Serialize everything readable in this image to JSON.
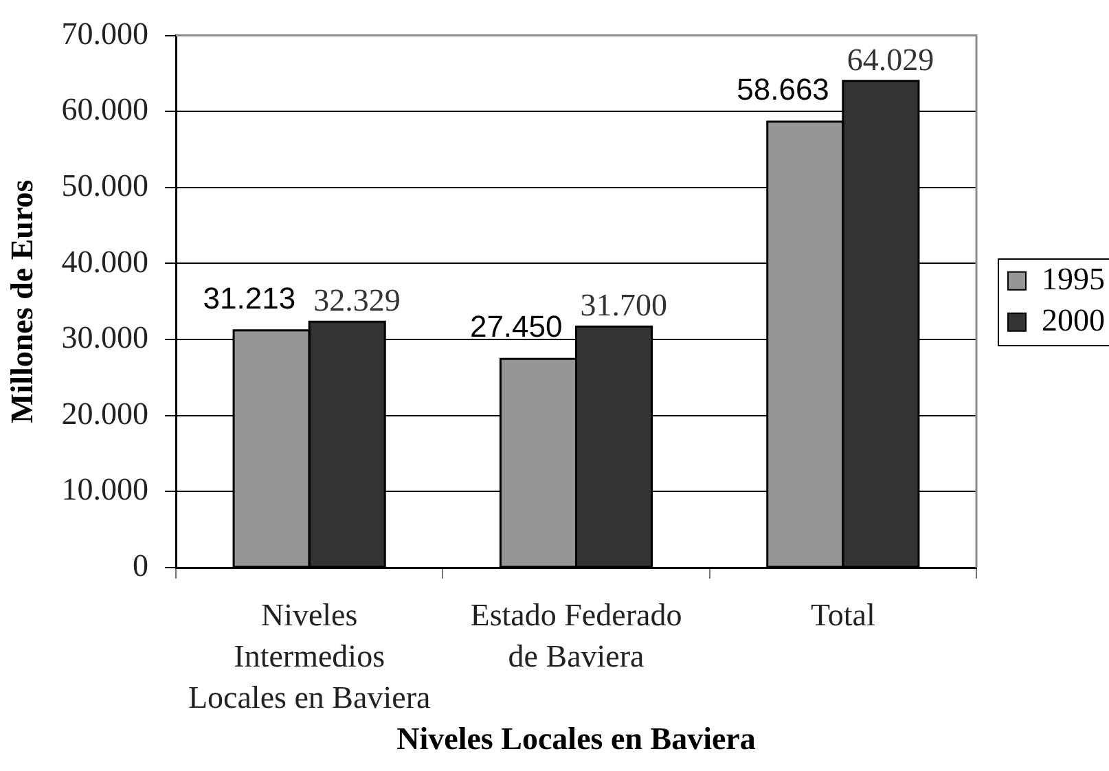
{
  "chart_data": {
    "type": "bar",
    "xlabel": "Niveles Locales en Baviera",
    "ylabel": "Millones de Euros",
    "categories": [
      "Niveles Intermedios Locales en Baviera",
      "Estado Federado de Baviera",
      "Total"
    ],
    "series": [
      {
        "name": "1995",
        "color": "#969696",
        "values": [
          31213,
          27450,
          58663
        ],
        "value_labels": [
          "31.213",
          "27.450",
          "58.663"
        ]
      },
      {
        "name": "2000",
        "color": "#333333",
        "values": [
          32329,
          31700,
          64029
        ],
        "value_labels": [
          "32.329",
          "31.700",
          "64.029"
        ]
      }
    ],
    "ylim": [
      0,
      70000
    ],
    "yticks": [
      0,
      {
        "value": 10000,
        "label": "10.000"
      },
      {
        "value": 20000,
        "label": "20.000"
      },
      {
        "value": 30000,
        "label": "30.000"
      },
      {
        "value": 40000,
        "label": "40.000"
      },
      {
        "value": 50000,
        "label": "50.000"
      },
      {
        "value": 60000,
        "label": "60.000"
      },
      {
        "value": 70000,
        "label": "70.000"
      }
    ],
    "grid": "y",
    "legend": "right"
  }
}
